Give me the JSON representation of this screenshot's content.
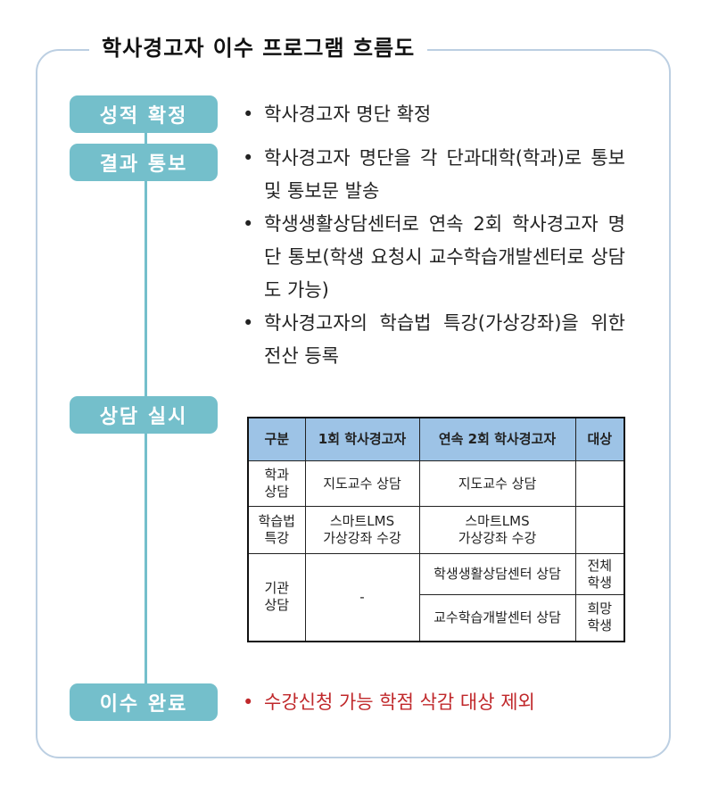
{
  "title": "학사경고자 이수 프로그램 흐름도",
  "steps": [
    {
      "label": "성적 확정",
      "bullets": [
        "학사경고자 명단 확정"
      ]
    },
    {
      "label": "결과 통보",
      "bullets": [
        "학사경고자 명단을 각 단과대학(학과)로 통보 및 통보문 발송",
        "학생생활상담센터로 연속 2회 학사경고자 명단 통보(학생 요청시 교수학습개발센터로 상담도 가능)",
        "학사경고자의 학습법 특강(가상강좌)을 위한 전산 등록"
      ]
    },
    {
      "label": "상담 실시"
    },
    {
      "label": "이수 완료",
      "bullets": [
        "수강신청 가능 학점 삭감 대상 제외"
      ]
    }
  ],
  "table": {
    "headers": [
      "구분",
      "1회 학사경고자",
      "연속 2회 학사경고자",
      "대상"
    ],
    "rows": [
      {
        "type": "학과\n상담",
        "first": "지도교수 상담",
        "second": "지도교수 상담",
        "target": ""
      },
      {
        "type": "학습법\n특강",
        "first": "스마트LMS\n가상강좌 수강",
        "second": "스마트LMS\n가상강좌 수강",
        "target": ""
      },
      {
        "type": "기관\n상담",
        "first": "-",
        "second": "학생생활상담센터 상담",
        "target": "전체\n학생"
      },
      {
        "second": "교수학습개발센터 상담",
        "target": "희망\n학생"
      }
    ]
  },
  "colors": {
    "pill": "#74bfcb",
    "header": "#9dc3e6",
    "frame": "#bccfe2",
    "highlight": "#c0282b"
  }
}
